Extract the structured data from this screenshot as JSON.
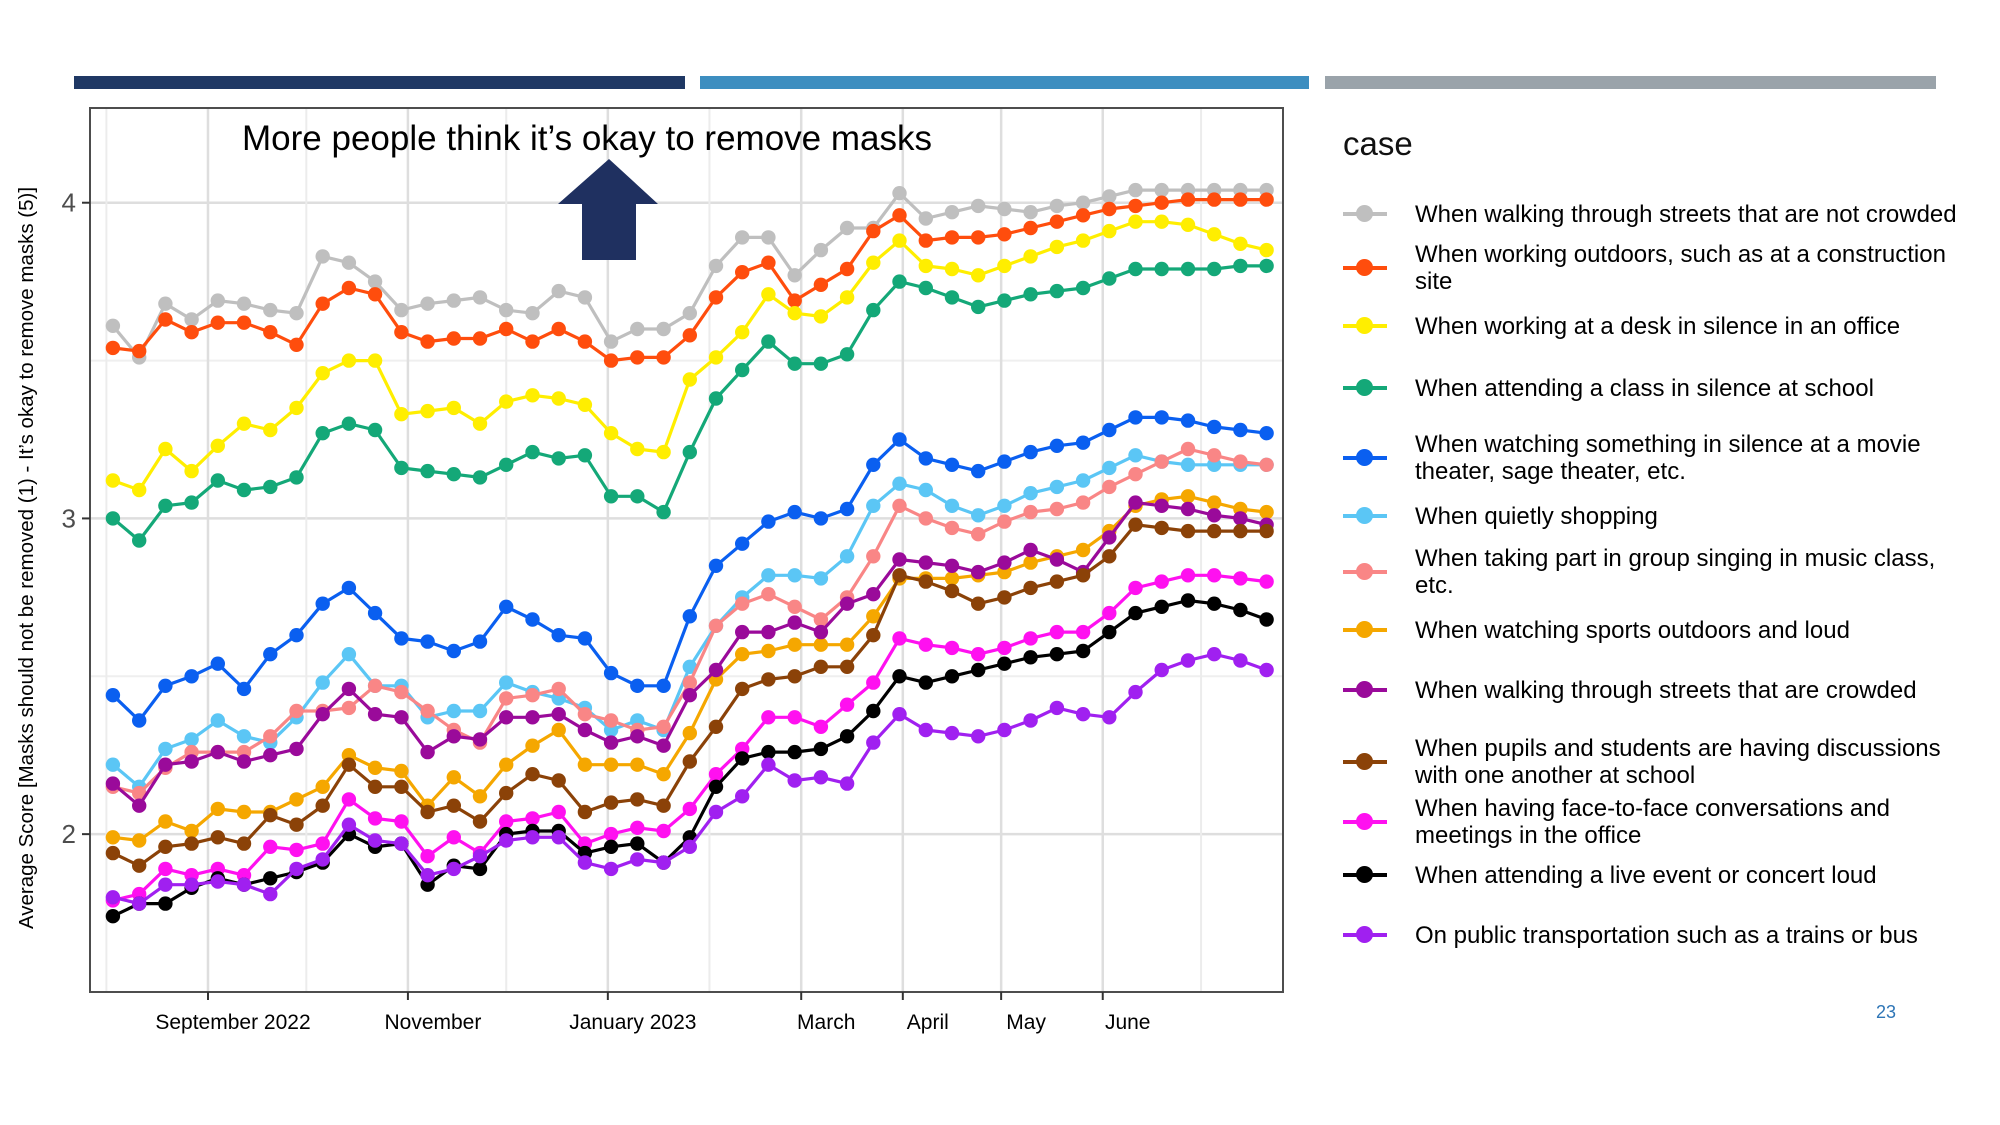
{
  "slide": {
    "page_number": "23",
    "header_bar_colors": [
      "#1f3864",
      "#3d8ec0",
      "#9aa3aa"
    ],
    "annotation": "More people think it’s okay to remove masks",
    "annotation_arrow": "up-arrow-icon",
    "annotation_arrow_color": "#1f3060"
  },
  "legend": {
    "title": "case",
    "items": [
      {
        "label": "When walking through streets that are not crowded",
        "color": "#bfbfbf"
      },
      {
        "label": "When working outdoors, such as at a construction site",
        "color": "#ff4d0d"
      },
      {
        "label": "When working at a desk in silence in an office",
        "color": "#ffee00"
      },
      {
        "label": "When attending a class in silence at school",
        "color": "#14a878"
      },
      {
        "label": "When watching something in silence at a movie theater, sage theater, etc.",
        "color": "#0a5ff0"
      },
      {
        "label": "When quietly shopping",
        "color": "#5bc6f5"
      },
      {
        "label": "When taking part in group singing in music class, etc.",
        "color": "#f98686"
      },
      {
        "label": "When watching sports outdoors and loud",
        "color": "#f5a700"
      },
      {
        "label": "When walking through streets that are crowded",
        "color": "#9a0a9a"
      },
      {
        "label": "When pupils and students are having discussions with one another at school",
        "color": "#8b4208"
      },
      {
        "label": "When having face-to-face conversations and meetings in the office",
        "color": "#ff10f0"
      },
      {
        "label": "When attending a live event or concert loud",
        "color": "#000000"
      },
      {
        "label": "On public transportation such as a trains or bus",
        "color": "#a020f0"
      }
    ]
  },
  "chart_data": {
    "type": "line",
    "ylabel": "Average Score [Masks should not be removed (1) - It’s okay to remove masks (5)]",
    "xlabel": "",
    "ylim": [
      1.5,
      4.3
    ],
    "yticks": [
      2,
      3,
      4
    ],
    "xlim": [
      "2022-07-27",
      "2023-07-26"
    ],
    "xtick_labels": [
      {
        "label": "September 2022",
        "date": "2022-09-01"
      },
      {
        "label": "November",
        "date": "2022-11-01"
      },
      {
        "label": "January 2023",
        "date": "2023-01-01"
      },
      {
        "label": "March",
        "date": "2023-03-01"
      },
      {
        "label": "April",
        "date": "2023-04-01"
      },
      {
        "label": "May",
        "date": "2023-05-01"
      },
      {
        "label": "June",
        "date": "2023-06-01"
      }
    ],
    "grid": true,
    "legend_position": "right",
    "x": [
      "2022-08-03",
      "2022-08-11",
      "2022-08-19",
      "2022-08-27",
      "2022-09-04",
      "2022-09-12",
      "2022-09-20",
      "2022-09-28",
      "2022-10-06",
      "2022-10-14",
      "2022-10-22",
      "2022-10-30",
      "2022-11-07",
      "2022-11-15",
      "2022-11-23",
      "2022-12-01",
      "2022-12-09",
      "2022-12-17",
      "2022-12-25",
      "2023-01-02",
      "2023-01-10",
      "2023-01-18",
      "2023-01-26",
      "2023-02-03",
      "2023-02-11",
      "2023-02-19",
      "2023-02-27",
      "2023-03-07",
      "2023-03-15",
      "2023-03-23",
      "2023-03-31",
      "2023-04-08",
      "2023-04-16",
      "2023-04-24",
      "2023-05-02",
      "2023-05-10",
      "2023-05-18",
      "2023-05-26",
      "2023-06-03",
      "2023-06-11",
      "2023-06-19",
      "2023-06-27",
      "2023-07-05",
      "2023-07-13",
      "2023-07-21"
    ],
    "series": [
      {
        "name": "When walking through streets that are not crowded",
        "values": [
          3.61,
          3.51,
          3.68,
          3.63,
          3.69,
          3.68,
          3.66,
          3.65,
          3.83,
          3.81,
          3.75,
          3.66,
          3.68,
          3.69,
          3.7,
          3.66,
          3.65,
          3.72,
          3.7,
          3.56,
          3.6,
          3.6,
          3.65,
          3.8,
          3.89,
          3.89,
          3.77,
          3.85,
          3.92,
          3.92,
          4.03,
          3.95,
          3.97,
          3.99,
          3.98,
          3.97,
          3.99,
          4.0,
          4.02,
          4.04,
          4.04,
          4.04,
          4.04,
          4.04,
          4.04
        ]
      },
      {
        "name": "When working outdoors, such as at a construction site",
        "values": [
          3.54,
          3.53,
          3.63,
          3.59,
          3.62,
          3.62,
          3.59,
          3.55,
          3.68,
          3.73,
          3.71,
          3.59,
          3.56,
          3.57,
          3.57,
          3.6,
          3.56,
          3.6,
          3.56,
          3.5,
          3.51,
          3.51,
          3.58,
          3.7,
          3.78,
          3.81,
          3.69,
          3.74,
          3.79,
          3.91,
          3.96,
          3.88,
          3.89,
          3.89,
          3.9,
          3.92,
          3.94,
          3.96,
          3.98,
          3.99,
          4.0,
          4.01,
          4.01,
          4.01,
          4.01
        ]
      },
      {
        "name": "When working at a desk in silence in an office",
        "values": [
          3.12,
          3.09,
          3.22,
          3.15,
          3.23,
          3.3,
          3.28,
          3.35,
          3.46,
          3.5,
          3.5,
          3.33,
          3.34,
          3.35,
          3.3,
          3.37,
          3.39,
          3.38,
          3.36,
          3.27,
          3.22,
          3.21,
          3.44,
          3.51,
          3.59,
          3.71,
          3.65,
          3.64,
          3.7,
          3.81,
          3.88,
          3.8,
          3.79,
          3.77,
          3.8,
          3.83,
          3.86,
          3.88,
          3.91,
          3.94,
          3.94,
          3.93,
          3.9,
          3.87,
          3.85
        ]
      },
      {
        "name": "When attending a class in silence at school",
        "values": [
          3.0,
          2.93,
          3.04,
          3.05,
          3.12,
          3.09,
          3.1,
          3.13,
          3.27,
          3.3,
          3.28,
          3.16,
          3.15,
          3.14,
          3.13,
          3.17,
          3.21,
          3.19,
          3.2,
          3.07,
          3.07,
          3.02,
          3.21,
          3.38,
          3.47,
          3.56,
          3.49,
          3.49,
          3.52,
          3.66,
          3.75,
          3.73,
          3.7,
          3.67,
          3.69,
          3.71,
          3.72,
          3.73,
          3.76,
          3.79,
          3.79,
          3.79,
          3.79,
          3.8,
          3.8
        ]
      },
      {
        "name": "When watching something in silence at a movie theater, sage theater, etc.",
        "values": [
          2.44,
          2.36,
          2.47,
          2.5,
          2.54,
          2.46,
          2.57,
          2.63,
          2.73,
          2.78,
          2.7,
          2.62,
          2.61,
          2.58,
          2.61,
          2.72,
          2.68,
          2.63,
          2.62,
          2.51,
          2.47,
          2.47,
          2.69,
          2.85,
          2.92,
          2.99,
          3.02,
          3.0,
          3.03,
          3.17,
          3.25,
          3.19,
          3.17,
          3.15,
          3.18,
          3.21,
          3.23,
          3.24,
          3.28,
          3.32,
          3.32,
          3.31,
          3.29,
          3.28,
          3.27
        ]
      },
      {
        "name": "When quietly shopping",
        "values": [
          2.22,
          2.15,
          2.27,
          2.3,
          2.36,
          2.31,
          2.29,
          2.37,
          2.48,
          2.57,
          2.47,
          2.47,
          2.37,
          2.39,
          2.39,
          2.48,
          2.45,
          2.43,
          2.4,
          2.33,
          2.36,
          2.33,
          2.53,
          2.66,
          2.75,
          2.82,
          2.82,
          2.81,
          2.88,
          3.04,
          3.11,
          3.09,
          3.04,
          3.01,
          3.04,
          3.08,
          3.1,
          3.12,
          3.16,
          3.2,
          3.18,
          3.17,
          3.17,
          3.17,
          3.17
        ]
      },
      {
        "name": "When taking part in group singing in music class, etc.",
        "values": [
          2.15,
          2.13,
          2.21,
          2.26,
          2.26,
          2.26,
          2.31,
          2.39,
          2.39,
          2.4,
          2.47,
          2.45,
          2.39,
          2.33,
          2.29,
          2.43,
          2.44,
          2.46,
          2.38,
          2.36,
          2.33,
          2.34,
          2.48,
          2.66,
          2.73,
          2.76,
          2.72,
          2.68,
          2.75,
          2.88,
          3.04,
          3.0,
          2.97,
          2.95,
          2.99,
          3.02,
          3.03,
          3.05,
          3.1,
          3.14,
          3.18,
          3.22,
          3.2,
          3.18,
          3.17
        ]
      },
      {
        "name": "When watching sports outdoors and loud",
        "values": [
          1.99,
          1.98,
          2.04,
          2.01,
          2.08,
          2.07,
          2.07,
          2.11,
          2.15,
          2.25,
          2.21,
          2.2,
          2.09,
          2.18,
          2.12,
          2.22,
          2.28,
          2.33,
          2.22,
          2.22,
          2.22,
          2.19,
          2.32,
          2.49,
          2.57,
          2.58,
          2.6,
          2.6,
          2.6,
          2.69,
          2.81,
          2.81,
          2.81,
          2.82,
          2.83,
          2.86,
          2.88,
          2.9,
          2.96,
          3.04,
          3.06,
          3.07,
          3.05,
          3.03,
          3.02
        ]
      },
      {
        "name": "When walking through streets that are crowded",
        "values": [
          2.16,
          2.09,
          2.22,
          2.23,
          2.26,
          2.23,
          2.25,
          2.27,
          2.38,
          2.46,
          2.38,
          2.37,
          2.26,
          2.31,
          2.3,
          2.37,
          2.37,
          2.38,
          2.33,
          2.29,
          2.31,
          2.28,
          2.44,
          2.52,
          2.64,
          2.64,
          2.67,
          2.64,
          2.73,
          2.76,
          2.87,
          2.86,
          2.85,
          2.83,
          2.86,
          2.9,
          2.87,
          2.83,
          2.94,
          3.05,
          3.04,
          3.03,
          3.01,
          3.0,
          2.98
        ]
      },
      {
        "name": "When pupils and students are having discussions with one another at school",
        "values": [
          1.94,
          1.9,
          1.96,
          1.97,
          1.99,
          1.97,
          2.06,
          2.03,
          2.09,
          2.22,
          2.15,
          2.15,
          2.07,
          2.09,
          2.04,
          2.13,
          2.19,
          2.17,
          2.07,
          2.1,
          2.11,
          2.09,
          2.23,
          2.34,
          2.46,
          2.49,
          2.5,
          2.53,
          2.53,
          2.63,
          2.82,
          2.8,
          2.77,
          2.73,
          2.75,
          2.78,
          2.8,
          2.82,
          2.88,
          2.98,
          2.97,
          2.96,
          2.96,
          2.96,
          2.96
        ]
      },
      {
        "name": "When having face-to-face conversations and meetings in the office",
        "values": [
          1.79,
          1.81,
          1.89,
          1.87,
          1.89,
          1.87,
          1.96,
          1.95,
          1.97,
          2.11,
          2.05,
          2.04,
          1.93,
          1.99,
          1.94,
          2.04,
          2.05,
          2.07,
          1.97,
          2.0,
          2.02,
          2.01,
          2.08,
          2.19,
          2.27,
          2.37,
          2.37,
          2.34,
          2.41,
          2.48,
          2.62,
          2.6,
          2.59,
          2.57,
          2.59,
          2.62,
          2.64,
          2.64,
          2.7,
          2.78,
          2.8,
          2.82,
          2.82,
          2.81,
          2.8
        ]
      },
      {
        "name": "When attending a live event or concert loud",
        "values": [
          1.74,
          1.78,
          1.78,
          1.83,
          1.86,
          1.84,
          1.86,
          1.88,
          1.91,
          2.0,
          1.96,
          1.97,
          1.84,
          1.9,
          1.89,
          2.0,
          2.01,
          2.01,
          1.94,
          1.96,
          1.97,
          1.91,
          1.99,
          2.15,
          2.24,
          2.26,
          2.26,
          2.27,
          2.31,
          2.39,
          2.5,
          2.48,
          2.5,
          2.52,
          2.54,
          2.56,
          2.57,
          2.58,
          2.64,
          2.7,
          2.72,
          2.74,
          2.73,
          2.71,
          2.68
        ]
      },
      {
        "name": "On public transportation such as a trains or bus",
        "values": [
          1.8,
          1.78,
          1.84,
          1.84,
          1.85,
          1.84,
          1.81,
          1.89,
          1.92,
          2.03,
          1.98,
          1.97,
          1.87,
          1.89,
          1.93,
          1.98,
          1.99,
          1.99,
          1.91,
          1.89,
          1.92,
          1.91,
          1.96,
          2.07,
          2.12,
          2.22,
          2.17,
          2.18,
          2.16,
          2.29,
          2.38,
          2.33,
          2.32,
          2.31,
          2.33,
          2.36,
          2.4,
          2.38,
          2.37,
          2.45,
          2.52,
          2.55,
          2.57,
          2.55,
          2.52
        ]
      }
    ]
  }
}
